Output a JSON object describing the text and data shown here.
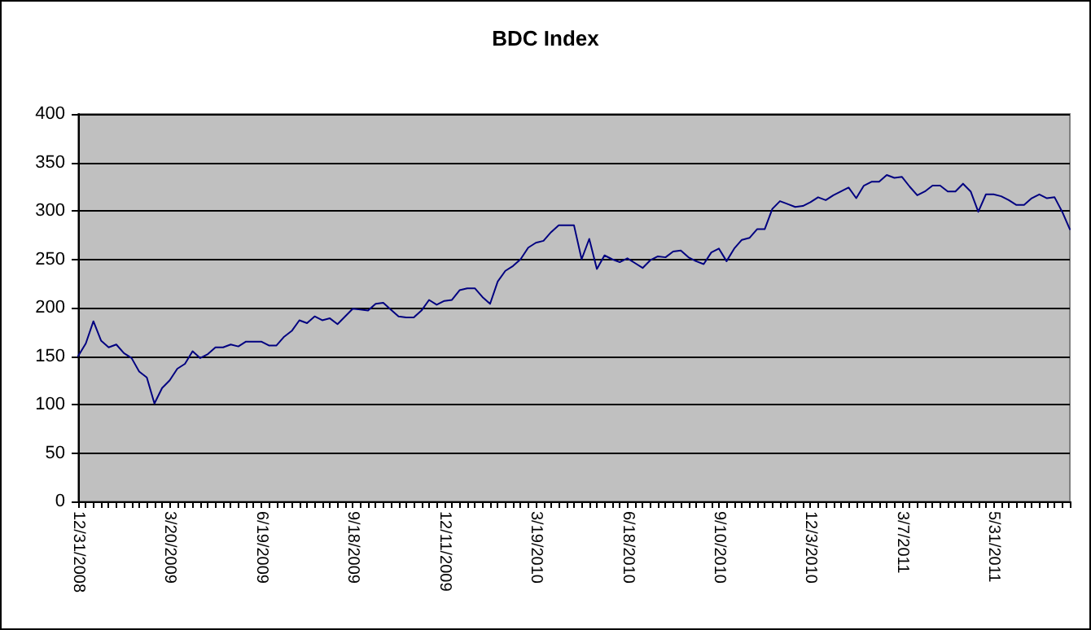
{
  "chart_data": {
    "type": "line",
    "title": "BDC Index",
    "categories": [
      "12/31/2008",
      null,
      null,
      null,
      null,
      null,
      null,
      null,
      null,
      null,
      null,
      null,
      "3/20/2009",
      null,
      null,
      null,
      null,
      null,
      null,
      null,
      null,
      null,
      null,
      null,
      "6/19/2009",
      null,
      null,
      null,
      null,
      null,
      null,
      null,
      null,
      null,
      null,
      null,
      "9/18/2009",
      null,
      null,
      null,
      null,
      null,
      null,
      null,
      null,
      null,
      null,
      null,
      "12/11/2009",
      null,
      null,
      null,
      null,
      null,
      null,
      null,
      null,
      null,
      null,
      null,
      "3/19/2010",
      null,
      null,
      null,
      null,
      null,
      null,
      null,
      null,
      null,
      null,
      null,
      "6/18/2010",
      null,
      null,
      null,
      null,
      null,
      null,
      null,
      null,
      null,
      null,
      null,
      "9/10/2010",
      null,
      null,
      null,
      null,
      null,
      null,
      null,
      null,
      null,
      null,
      null,
      "12/3/2010",
      null,
      null,
      null,
      null,
      null,
      null,
      null,
      null,
      null,
      null,
      null,
      "3/7/2011",
      null,
      null,
      null,
      null,
      null,
      null,
      null,
      null,
      null,
      null,
      null,
      "5/31/2011",
      null,
      null,
      null,
      null,
      null,
      null,
      null,
      null,
      null,
      null
    ],
    "series": [
      {
        "color": "#000080",
        "values": [
          150,
          163,
          186,
          166,
          159,
          162,
          153,
          148,
          134,
          128,
          101,
          117,
          125,
          137,
          142,
          155,
          148,
          152,
          159,
          159,
          162,
          160,
          165,
          165,
          165,
          161,
          161,
          170,
          176,
          187,
          184,
          191,
          187,
          189,
          183,
          191,
          199,
          198,
          197,
          204,
          205,
          198,
          191,
          190,
          190,
          197,
          208,
          203,
          207,
          208,
          218,
          220,
          220,
          211,
          204,
          227,
          238,
          243,
          250,
          262,
          267,
          269,
          278,
          285,
          285,
          285,
          250,
          271,
          240,
          254,
          250,
          247,
          251,
          246,
          241,
          249,
          253,
          252,
          258,
          259,
          252,
          248,
          245,
          257,
          261,
          248,
          261,
          270,
          272,
          281,
          281,
          302,
          310,
          307,
          304,
          305,
          309,
          314,
          311,
          316,
          320,
          324,
          313,
          326,
          330,
          330,
          337,
          334,
          335,
          325,
          316,
          320,
          326,
          326,
          320,
          320,
          328,
          320,
          299,
          317,
          317,
          315,
          311,
          306,
          306,
          313,
          317,
          313,
          314,
          299,
          281
        ]
      }
    ],
    "ylim": [
      0,
      400
    ],
    "yticks": [
      0,
      50,
      100,
      150,
      200,
      250,
      300,
      350,
      400
    ],
    "grid": "y",
    "marker": "none",
    "line_style": "solid"
  }
}
